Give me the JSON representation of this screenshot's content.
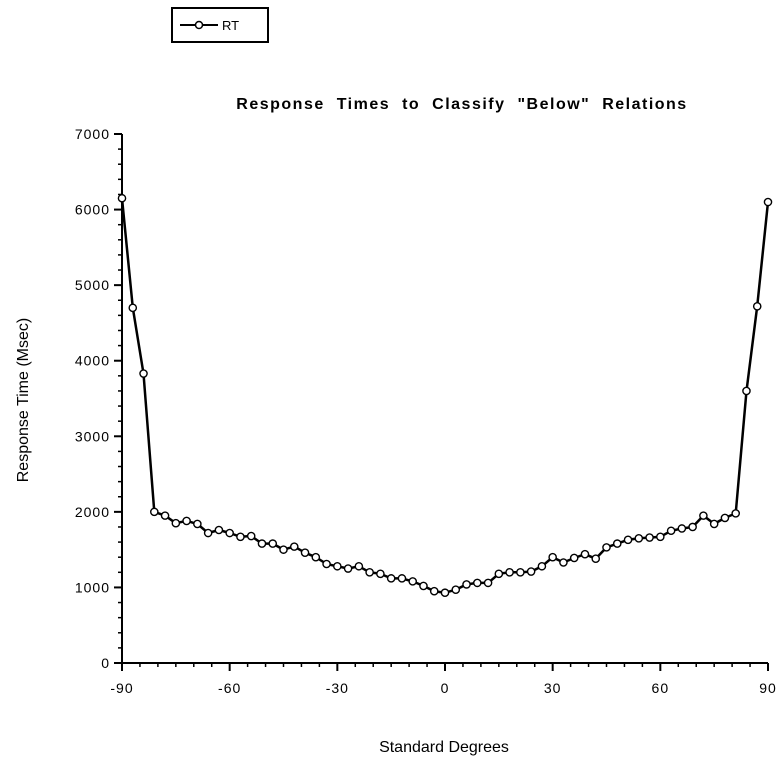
{
  "chart_data": {
    "type": "line",
    "title": "Response Times to Classify \"Below\" Relations",
    "xlabel": "Standard Degrees",
    "ylabel": "Response Time (Msec)",
    "xlim": [
      -90,
      90
    ],
    "ylim": [
      0,
      7000
    ],
    "x_ticks": [
      -90,
      -60,
      -30,
      0,
      30,
      60,
      90
    ],
    "y_ticks": [
      0,
      1000,
      2000,
      3000,
      4000,
      5000,
      6000,
      7000
    ],
    "legend_position": "top-left",
    "grid": false,
    "series": [
      {
        "name": "RT",
        "color": "#000000",
        "marker": "circle",
        "x": [
          -90,
          -87,
          -84,
          -81,
          -78,
          -75,
          -72,
          -69,
          -66,
          -63,
          -60,
          -57,
          -54,
          -51,
          -48,
          -45,
          -42,
          -39,
          -36,
          -33,
          -30,
          -27,
          -24,
          -21,
          -18,
          -15,
          -12,
          -9,
          -6,
          -3,
          0,
          3,
          6,
          9,
          12,
          15,
          18,
          21,
          24,
          27,
          30,
          33,
          36,
          39,
          42,
          45,
          48,
          51,
          54,
          57,
          60,
          63,
          66,
          69,
          72,
          75,
          78,
          81,
          84,
          87,
          90
        ],
        "values": [
          6150,
          4700,
          3830,
          2000,
          1950,
          1850,
          1880,
          1840,
          1720,
          1760,
          1720,
          1670,
          1680,
          1580,
          1580,
          1500,
          1540,
          1460,
          1400,
          1310,
          1280,
          1250,
          1280,
          1200,
          1180,
          1120,
          1120,
          1080,
          1020,
          950,
          930,
          970,
          1040,
          1060,
          1060,
          1180,
          1200,
          1200,
          1210,
          1280,
          1400,
          1330,
          1390,
          1440,
          1380,
          1530,
          1580,
          1630,
          1650,
          1660,
          1670,
          1750,
          1780,
          1800,
          1950,
          1840,
          1920,
          1980,
          3600,
          4720,
          6100
        ]
      }
    ]
  }
}
